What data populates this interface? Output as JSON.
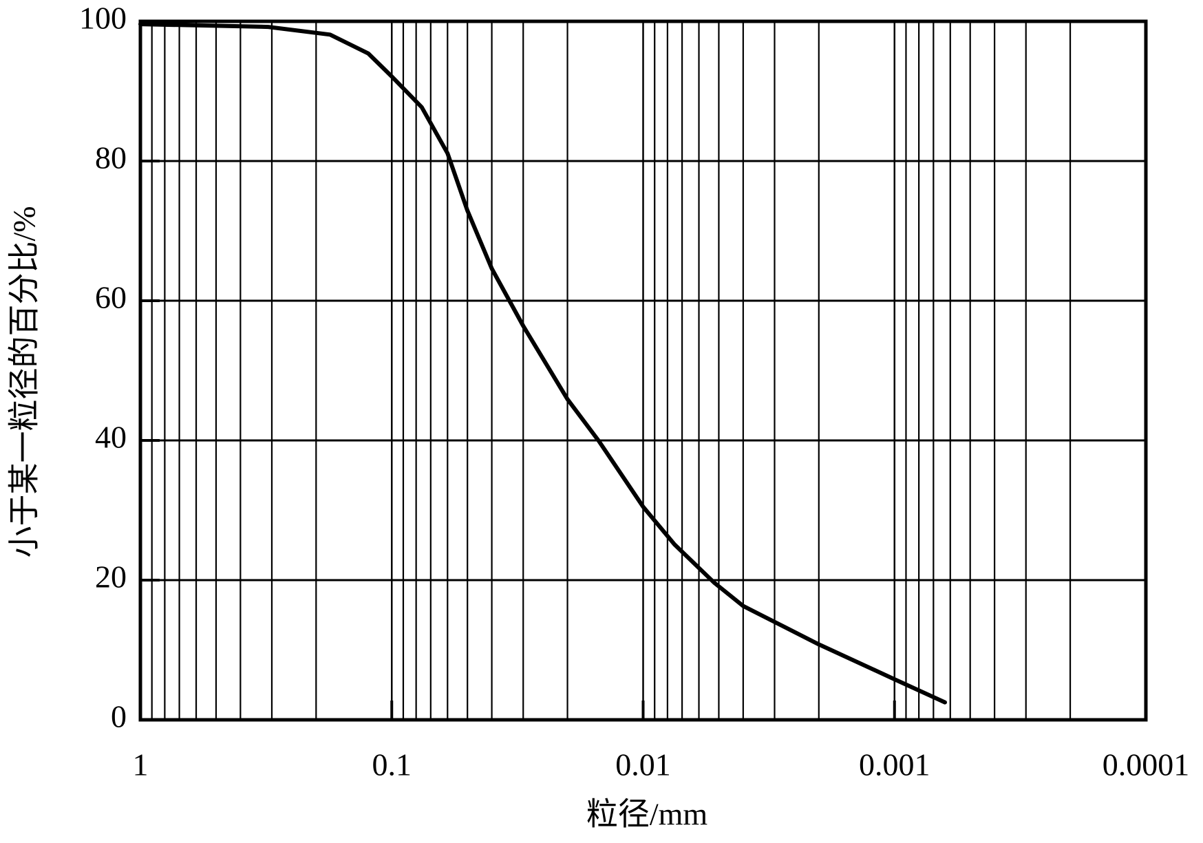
{
  "chart_data": {
    "type": "line",
    "x_label": "粒径/mm",
    "y_label": "小于某一粒径的百分比/%",
    "x_scale": "log",
    "xlim": [
      1,
      0.0001
    ],
    "xticks": [
      1,
      0.1,
      0.01,
      0.001,
      0.0001
    ],
    "ylim": [
      0,
      100
    ],
    "yticks": [
      0,
      20,
      40,
      60,
      80,
      100
    ],
    "grid": true,
    "series": [
      {
        "color": "#000000",
        "x": [
          1,
          0.31,
          0.176,
          0.124,
          0.1,
          0.076,
          0.06,
          0.05,
          0.04,
          0.03,
          0.02,
          0.015,
          0.01,
          0.0075,
          0.0052,
          0.004,
          0.002,
          0.001,
          0.00063
        ],
        "values": [
          99.6,
          99.2,
          98.1,
          95.4,
          92.1,
          87.7,
          81.1,
          72.9,
          64.6,
          56.4,
          45.9,
          39.9,
          30.5,
          25.1,
          19.6,
          16.3,
          10.8,
          5.8,
          2.5
        ]
      }
    ]
  }
}
